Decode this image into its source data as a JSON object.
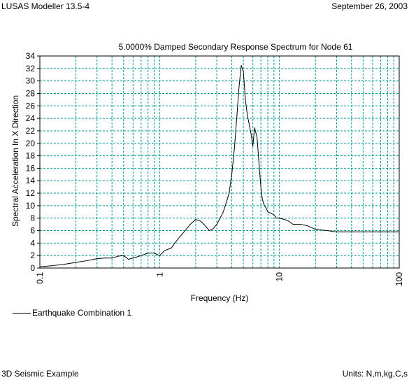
{
  "header": {
    "app_title": "LUSAS Modeller 13.5-4",
    "date": "September 26, 2003"
  },
  "footer": {
    "left": "3D Seismic Example",
    "right": "Units: N,m,kg,C,s"
  },
  "colors": {
    "grid": "#009a9a",
    "series": "#000000",
    "frame": "#000000"
  },
  "chart_data": {
    "type": "line",
    "title": "5.0000% Damped Secondary Response Spectrum for Node 61",
    "xlabel": "Frequency (Hz)",
    "ylabel": "Spectral Acceleration In X Direction",
    "x_scale": "log",
    "xlim": [
      0.1,
      100
    ],
    "ylim": [
      0,
      34
    ],
    "x_ticks": [
      0.1,
      1,
      10,
      100
    ],
    "x_tick_labels": [
      "0.1",
      "1",
      "10",
      "100"
    ],
    "y_ticks": [
      0,
      2,
      4,
      6,
      8,
      10,
      12,
      14,
      16,
      18,
      20,
      22,
      24,
      26,
      28,
      30,
      32,
      34
    ],
    "y_tick_labels": [
      "0",
      "2",
      "4",
      "6",
      "8",
      "10",
      "12",
      "14",
      "16",
      "18",
      "20",
      "22",
      "24",
      "26",
      "28",
      "30",
      "32",
      "34"
    ],
    "grid": true,
    "legend_position": "bottom-left",
    "series": [
      {
        "name": "Earthquake Combination 1",
        "x": [
          0.1,
          0.13,
          0.16,
          0.2,
          0.25,
          0.3,
          0.35,
          0.4,
          0.45,
          0.5,
          0.55,
          0.6,
          0.65,
          0.7,
          0.8,
          0.9,
          1.0,
          1.1,
          1.25,
          1.4,
          1.6,
          1.8,
          2.0,
          2.2,
          2.4,
          2.6,
          2.8,
          3.0,
          3.2,
          3.4,
          3.6,
          3.8,
          4.0,
          4.2,
          4.4,
          4.6,
          4.8,
          5.0,
          5.2,
          5.4,
          5.6,
          5.8,
          6.0,
          6.2,
          6.5,
          6.8,
          7.0,
          7.2,
          7.5,
          7.8,
          8.0,
          8.5,
          9.0,
          9.5,
          10,
          11,
          12,
          13,
          15,
          17,
          20,
          25,
          30,
          40,
          50,
          70,
          100
        ],
        "y": [
          0.2,
          0.4,
          0.6,
          0.9,
          1.2,
          1.5,
          1.6,
          1.6,
          1.9,
          2.0,
          1.4,
          1.6,
          1.8,
          2.0,
          2.4,
          2.4,
          2.0,
          2.8,
          3.2,
          4.5,
          5.8,
          7.0,
          7.8,
          7.5,
          6.8,
          6.0,
          6.3,
          7.0,
          8.0,
          9.0,
          10.5,
          12.0,
          15.0,
          19.0,
          24.0,
          29.0,
          32.5,
          31.5,
          27.0,
          24.5,
          23.0,
          21.5,
          19.5,
          22.5,
          21.0,
          16.0,
          13.0,
          11.0,
          10.0,
          9.5,
          9.0,
          8.8,
          8.5,
          8.0,
          8.0,
          7.8,
          7.5,
          7.0,
          7.0,
          6.8,
          6.2,
          6.0,
          5.8,
          5.8,
          5.8,
          5.8,
          5.8
        ]
      }
    ]
  }
}
